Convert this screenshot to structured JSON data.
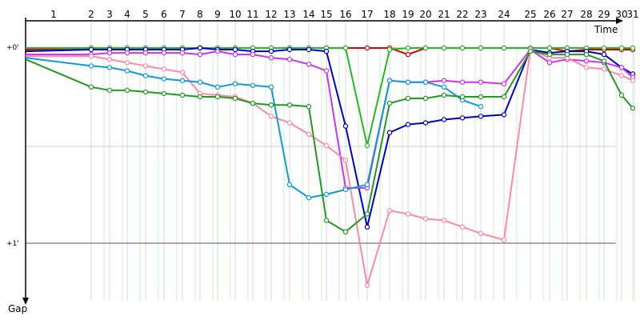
{
  "chart_data": {
    "type": "line",
    "title": "",
    "xlabel": "Time",
    "ylabel": "Gap",
    "laps": [
      "1",
      "2",
      "3",
      "4",
      "5",
      "6",
      "7",
      "8",
      "9",
      "10",
      "11",
      "12",
      "13",
      "14",
      "15",
      "16",
      "17",
      "18",
      "19",
      "20",
      "21",
      "22",
      "23",
      "24",
      "25",
      "26",
      "27",
      "28",
      "29",
      "30",
      "31"
    ],
    "y_ticks": [
      {
        "label": "+0'",
        "value": 0
      },
      {
        "label": "+1'",
        "value": 60
      }
    ],
    "ylim": [
      -1,
      73
    ],
    "x_range": [
      0,
      32
    ],
    "grid": true,
    "series": [
      {
        "color": "#dd0000",
        "points": [
          [
            0,
            0.5
          ],
          [
            2,
            0
          ],
          [
            3,
            0
          ],
          [
            4,
            0
          ],
          [
            5,
            0
          ],
          [
            6,
            0
          ],
          [
            7,
            0
          ],
          [
            8,
            0
          ],
          [
            9,
            0
          ],
          [
            10,
            0
          ],
          [
            11,
            0
          ],
          [
            12,
            0
          ],
          [
            13,
            0
          ],
          [
            14,
            0
          ],
          [
            15,
            0
          ],
          [
            16,
            0
          ],
          [
            17,
            0
          ],
          [
            18,
            0
          ],
          [
            19,
            2
          ],
          [
            20,
            0
          ],
          [
            21,
            0
          ],
          [
            22,
            0
          ],
          [
            23,
            0
          ],
          [
            24,
            0
          ],
          [
            25,
            0
          ],
          [
            26,
            0
          ],
          [
            27,
            1
          ],
          [
            28,
            0.5
          ],
          [
            29,
            0.5
          ],
          [
            30,
            0.5
          ],
          [
            31,
            0.5
          ]
        ]
      },
      {
        "color": "#22bb22",
        "points": [
          [
            0,
            0
          ],
          [
            2,
            0
          ],
          [
            3,
            0
          ],
          [
            4,
            0
          ],
          [
            5,
            0
          ],
          [
            6,
            0
          ],
          [
            7,
            0
          ],
          [
            8,
            0
          ],
          [
            9,
            0
          ],
          [
            10,
            0
          ],
          [
            11,
            0
          ],
          [
            12,
            0
          ],
          [
            13,
            0
          ],
          [
            14,
            0
          ],
          [
            15,
            0
          ],
          [
            16,
            0
          ],
          [
            17,
            30
          ],
          [
            18,
            0.5
          ],
          [
            19,
            0
          ],
          [
            20,
            0
          ],
          [
            21,
            0
          ],
          [
            22,
            0
          ],
          [
            23,
            0
          ],
          [
            24,
            0
          ],
          [
            25,
            0
          ],
          [
            26,
            0
          ],
          [
            27,
            0
          ],
          [
            28,
            0
          ],
          [
            29,
            0
          ],
          [
            30,
            0
          ],
          [
            31,
            0
          ]
        ]
      },
      {
        "color": "#0000cc",
        "points": [
          [
            0,
            1
          ],
          [
            2,
            0.5
          ],
          [
            3,
            0.5
          ],
          [
            4,
            0.5
          ],
          [
            5,
            0.5
          ],
          [
            6,
            0.5
          ],
          [
            7,
            0.5
          ],
          [
            8,
            0
          ],
          [
            9,
            0.5
          ],
          [
            10,
            0.5
          ],
          [
            11,
            1
          ],
          [
            12,
            1
          ],
          [
            13,
            0.5
          ],
          [
            14,
            0.5
          ],
          [
            15,
            1
          ],
          [
            16,
            24
          ],
          [
            17,
            55
          ],
          [
            18,
            26
          ],
          [
            19,
            23.5
          ],
          [
            20,
            23
          ],
          [
            21,
            22
          ],
          [
            22,
            21.5
          ],
          [
            23,
            21
          ],
          [
            24,
            20.5
          ],
          [
            25,
            0.5
          ],
          [
            26,
            1.5
          ],
          [
            27,
            1
          ],
          [
            28,
            1
          ],
          [
            29,
            2
          ],
          [
            30,
            6
          ],
          [
            31,
            8
          ]
        ]
      },
      {
        "color": "#cc33ee",
        "points": [
          [
            0,
            2
          ],
          [
            2,
            2
          ],
          [
            3,
            1.5
          ],
          [
            4,
            1.5
          ],
          [
            5,
            1.5
          ],
          [
            6,
            1.5
          ],
          [
            7,
            1.5
          ],
          [
            8,
            2
          ],
          [
            9,
            1
          ],
          [
            10,
            2
          ],
          [
            11,
            2
          ],
          [
            12,
            3
          ],
          [
            13,
            3.5
          ],
          [
            14,
            5
          ],
          [
            15,
            7
          ],
          [
            16,
            43
          ],
          [
            17,
            43
          ],
          [
            18,
            10
          ],
          [
            19,
            10.5
          ],
          [
            20,
            10.5
          ],
          [
            21,
            10
          ],
          [
            22,
            10.5
          ],
          [
            23,
            10.5
          ],
          [
            24,
            11
          ],
          [
            25,
            0.5
          ],
          [
            26,
            4.5
          ],
          [
            27,
            3.5
          ],
          [
            28,
            4
          ],
          [
            29,
            4.5
          ],
          [
            30,
            6
          ],
          [
            31,
            9
          ]
        ]
      },
      {
        "color": "#ff88aa",
        "points": [
          [
            0,
            2.5
          ],
          [
            2,
            2.5
          ],
          [
            3,
            3.5
          ],
          [
            4,
            4.5
          ],
          [
            5,
            5.5
          ],
          [
            6,
            6.5
          ],
          [
            7,
            7.5
          ],
          [
            8,
            14
          ],
          [
            9,
            14.5
          ],
          [
            10,
            15
          ],
          [
            11,
            17
          ],
          [
            12,
            21
          ],
          [
            13,
            23
          ],
          [
            14,
            26.5
          ],
          [
            15,
            30
          ],
          [
            16,
            34.5
          ],
          [
            17,
            73
          ],
          [
            18,
            50
          ],
          [
            19,
            51
          ],
          [
            20,
            52.5
          ],
          [
            21,
            53
          ],
          [
            22,
            55
          ],
          [
            23,
            57
          ],
          [
            24,
            59
          ],
          [
            25,
            0.5
          ],
          [
            26,
            3
          ],
          [
            27,
            3
          ],
          [
            28,
            6
          ],
          [
            29,
            6.5
          ],
          [
            30,
            8.5
          ],
          [
            31,
            10
          ]
        ]
      },
      {
        "color": "#1199dd",
        "points": [
          [
            0,
            3
          ],
          [
            2,
            5.5
          ],
          [
            3,
            6
          ],
          [
            4,
            7
          ],
          [
            5,
            8.5
          ],
          [
            6,
            9.5
          ],
          [
            7,
            10
          ],
          [
            8,
            10.5
          ],
          [
            9,
            12
          ],
          [
            10,
            11
          ],
          [
            11,
            11.5
          ],
          [
            12,
            12
          ],
          [
            13,
            42
          ],
          [
            14,
            46
          ],
          [
            15,
            45
          ],
          [
            16,
            43.5
          ],
          [
            17,
            42
          ],
          [
            18,
            10
          ],
          [
            19,
            10.5
          ],
          [
            20,
            10.5
          ],
          [
            21,
            12
          ],
          [
            22,
            16
          ],
          [
            23,
            18
          ]
        ]
      },
      {
        "color": "#229922",
        "points": [
          [
            0,
            3.5
          ],
          [
            2,
            12
          ],
          [
            3,
            13
          ],
          [
            4,
            13
          ],
          [
            5,
            13.5
          ],
          [
            6,
            14
          ],
          [
            7,
            14.5
          ],
          [
            8,
            15
          ],
          [
            9,
            15
          ],
          [
            10,
            15.5
          ],
          [
            11,
            17
          ],
          [
            12,
            17.5
          ],
          [
            13,
            17.5
          ],
          [
            14,
            18
          ],
          [
            15,
            53
          ],
          [
            16,
            56.5
          ],
          [
            17,
            51
          ],
          [
            18,
            17
          ],
          [
            19,
            15.5
          ],
          [
            20,
            15.5
          ],
          [
            21,
            14.5
          ],
          [
            22,
            15
          ],
          [
            23,
            15
          ],
          [
            24,
            15
          ],
          [
            25,
            1
          ],
          [
            26,
            2
          ],
          [
            27,
            2
          ],
          [
            28,
            2
          ],
          [
            29,
            4
          ],
          [
            30,
            14.5
          ],
          [
            31,
            18.5
          ]
        ]
      }
    ]
  },
  "legend": []
}
